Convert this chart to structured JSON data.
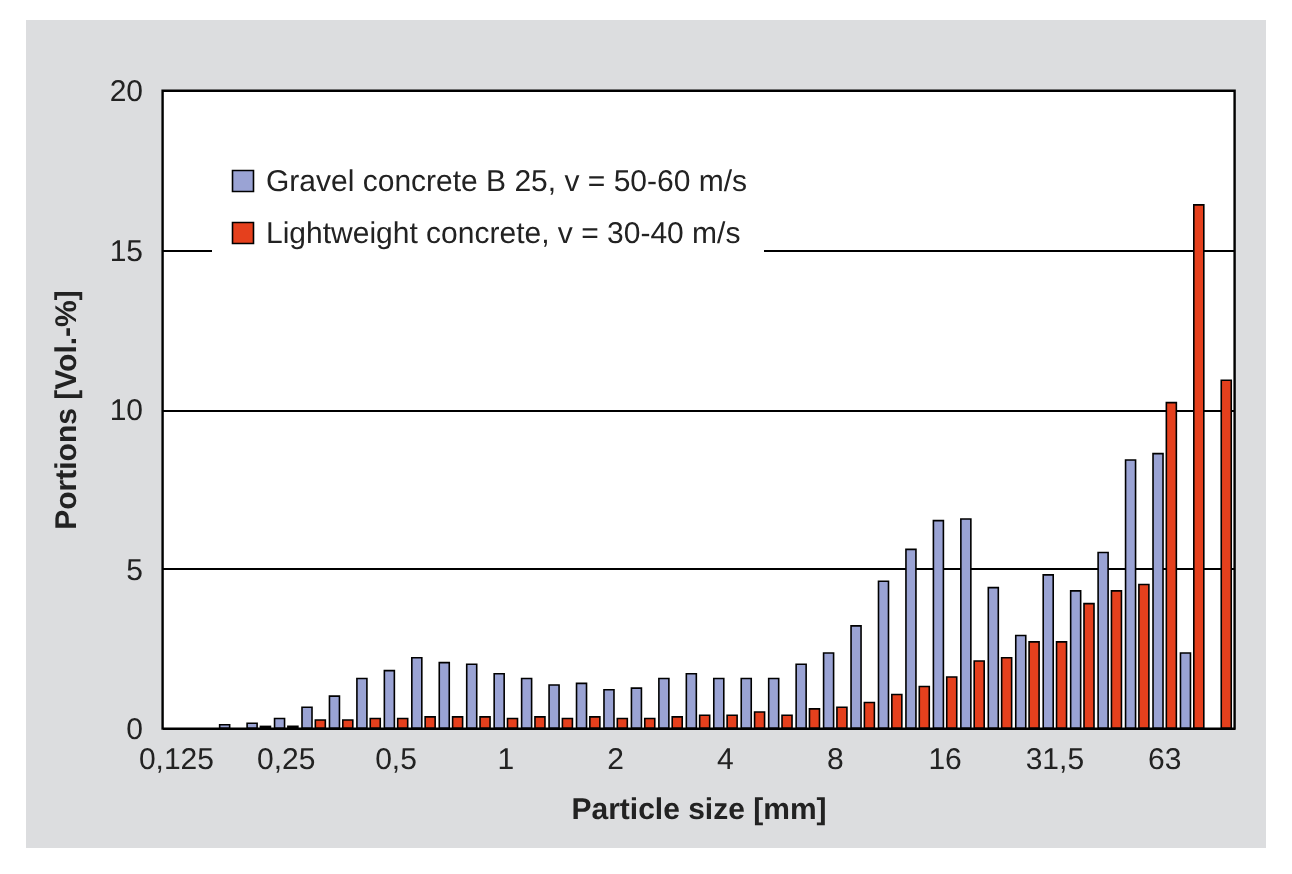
{
  "chart_data": {
    "type": "bar",
    "xlabel": "Particle size [mm]",
    "ylabel": "Portions [Vol.-%]",
    "categories": [
      "0,125",
      null,
      null,
      null,
      "0,25",
      null,
      null,
      null,
      "0,5",
      null,
      null,
      null,
      "1",
      null,
      null,
      null,
      "2",
      null,
      null,
      null,
      "4",
      null,
      null,
      null,
      "8",
      null,
      null,
      null,
      "16",
      null,
      null,
      null,
      "31,5",
      null,
      null,
      null,
      "63",
      null,
      null
    ],
    "series": [
      {
        "name": "Gravel concrete B 25, v = 50-60 m/s",
        "color": "#9aa3d4",
        "values": [
          null,
          null,
          0.1,
          0.15,
          0.3,
          0.65,
          1.0,
          1.55,
          1.8,
          2.2,
          2.05,
          2.0,
          1.7,
          1.55,
          1.35,
          1.4,
          1.2,
          1.25,
          1.55,
          1.7,
          1.55,
          1.55,
          1.55,
          2.0,
          2.35,
          3.2,
          4.6,
          5.6,
          6.5,
          6.55,
          4.4,
          2.9,
          4.8,
          4.3,
          5.5,
          8.4,
          8.6,
          2.35,
          null
        ]
      },
      {
        "name": "Lightweight concrete, v = 30-40 m/s",
        "color": "#e5401d",
        "values": [
          null,
          null,
          null,
          0.05,
          0.05,
          0.25,
          0.25,
          0.3,
          0.3,
          0.35,
          0.35,
          0.35,
          0.3,
          0.35,
          0.3,
          0.35,
          0.3,
          0.3,
          0.35,
          0.4,
          0.4,
          0.5,
          0.4,
          0.6,
          0.65,
          0.8,
          1.05,
          1.3,
          1.6,
          2.1,
          2.2,
          2.7,
          2.7,
          3.9,
          4.3,
          4.5,
          10.2,
          16.4,
          10.9
        ]
      }
    ],
    "ylim": [
      0,
      20
    ],
    "yticks": [
      0,
      5,
      10,
      15,
      20
    ],
    "grid": "y",
    "legend": "top left"
  }
}
